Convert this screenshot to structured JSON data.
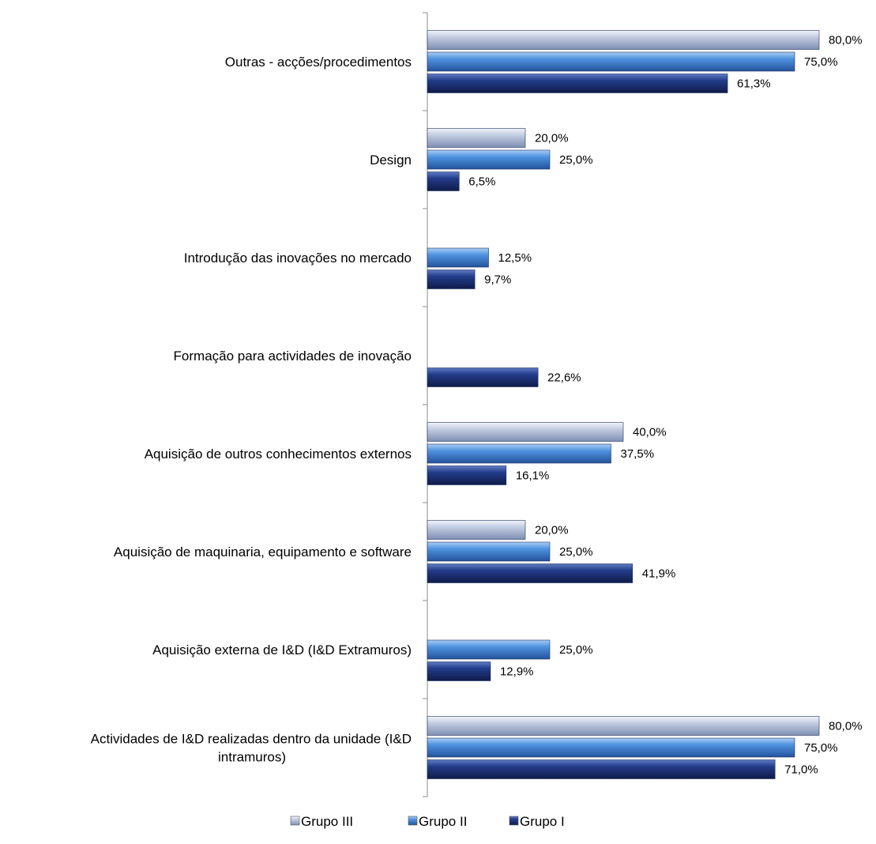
{
  "chart_data": {
    "type": "bar",
    "orientation": "horizontal",
    "categories": [
      "Outras - acções/procedimentos",
      "Design",
      "Introdução das inovações no mercado",
      "Formação para actividades de inovação",
      "Aquisição de outros conhecimentos externos",
      "Aquisição de maquinaria, equipamento e software",
      "Aquisição externa de I&D (I&D Extramuros)",
      "Actividades de I&D realizadas dentro da unidade (I&D intramuros)"
    ],
    "series": [
      {
        "name": "Grupo III",
        "color": "#9eabc8",
        "values": [
          80.0,
          20.0,
          null,
          null,
          40.0,
          20.0,
          null,
          80.0
        ],
        "labels": [
          "80,0%",
          "20,0%",
          "",
          "",
          "40,0%",
          "20,0%",
          "",
          "80,0%"
        ]
      },
      {
        "name": "Grupo II",
        "color": "#3d7fd0",
        "values": [
          75.0,
          25.0,
          12.5,
          null,
          37.5,
          25.0,
          25.0,
          75.0
        ],
        "labels": [
          "75,0%",
          "25,0%",
          "12,5%",
          "",
          "37,5%",
          "25,0%",
          "25,0%",
          "75,0%"
        ]
      },
      {
        "name": "Grupo I",
        "color": "#1c2f73",
        "values": [
          61.3,
          6.5,
          9.7,
          22.6,
          16.1,
          41.9,
          12.9,
          71.0
        ],
        "labels": [
          "61,3%",
          "6,5%",
          "9,7%",
          "22,6%",
          "16,1%",
          "41,9%",
          "12,9%",
          "71,0%"
        ]
      }
    ],
    "legend": {
      "position": "bottom",
      "entries": [
        "Grupo III",
        "Grupo II",
        "Grupo I"
      ]
    },
    "xlim": [
      0,
      100
    ],
    "grid": false,
    "title": "",
    "xlabel": "",
    "ylabel": ""
  }
}
